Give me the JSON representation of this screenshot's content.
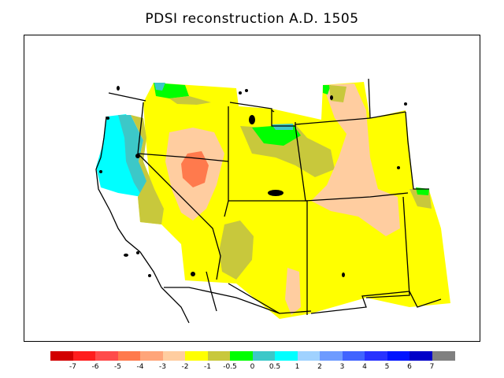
{
  "title": "PDSI reconstruction A.D. 1505",
  "map": {
    "palette": {
      "c_m7": "#d20000",
      "c_m6": "#ff1e1e",
      "c_m5": "#ff4b4b",
      "c_m4": "#ff7a4d",
      "c_m3": "#ffa57a",
      "c_m2": "#ffcda0",
      "c_m1": "#ffff00",
      "c_m05": "#c8c83c",
      "c_0": "#00ff00",
      "c_05": "#3cc8c8",
      "c_1": "#00ffff",
      "c_2": "#a0d2ff",
      "c_3": "#6e9bff",
      "c_4": "#4164ff",
      "c_5": "#2832ff",
      "c_6": "#0014ff",
      "c_7": "#0000c8",
      "c_8": "#808080"
    }
  },
  "legend": {
    "colors": [
      "#d20000",
      "#ff1e1e",
      "#ff4b4b",
      "#ff7a4d",
      "#ffa57a",
      "#ffcda0",
      "#ffff00",
      "#c8c83c",
      "#00ff00",
      "#3cc8c8",
      "#00ffff",
      "#a0d2ff",
      "#6e9bff",
      "#4164ff",
      "#2832ff",
      "#0014ff",
      "#0000c8",
      "#808080"
    ],
    "labels": [
      "-7",
      "-6",
      "-5",
      "-4",
      "-3",
      "-2",
      "-1",
      "-0.5",
      "0",
      "0.5",
      "1",
      "2",
      "3",
      "4",
      "5",
      "6",
      "7"
    ]
  }
}
